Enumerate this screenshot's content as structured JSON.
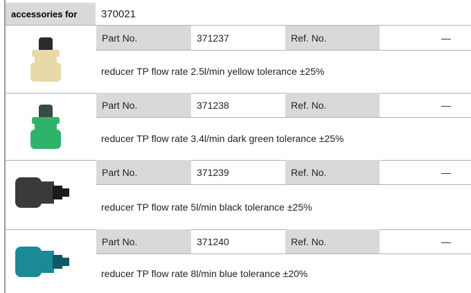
{
  "header": {
    "label": "accessories for",
    "value": "370021"
  },
  "items": [
    {
      "part_label": "Part No.",
      "part_no": "371237",
      "ref_label": "Ref. No.",
      "ref_no": "—",
      "description": "reducer  TP flow rate 2.5l/min yellow tolerance ±25%"
    },
    {
      "part_label": "Part No.",
      "part_no": "371238",
      "ref_label": "Ref. No.",
      "ref_no": "—",
      "description": "reducer  TP flow rate 3.4l/min dark green tolerance ±25%"
    },
    {
      "part_label": "Part No.",
      "part_no": "371239",
      "ref_label": "Ref. No.",
      "ref_no": "—",
      "description": "reducer  TP flow rate 5l/min black tolerance ±25%"
    },
    {
      "part_label": "Part No.",
      "part_no": "371240",
      "ref_label": "Ref. No.",
      "ref_no": "—",
      "description": "reducer  TP flow rate 8l/min blue tolerance ±20%"
    }
  ]
}
